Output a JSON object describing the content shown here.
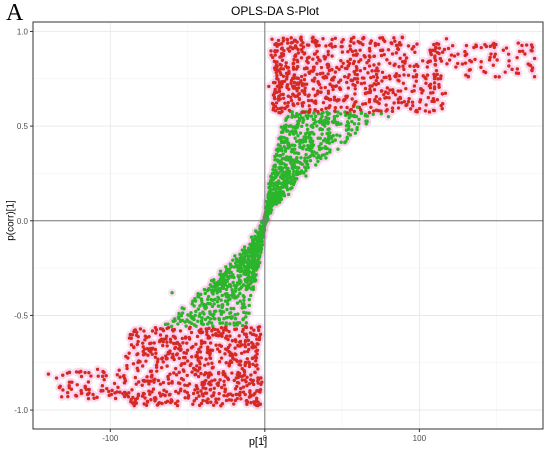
{
  "panel_label": "A",
  "chart_data": {
    "type": "scatter",
    "title": "OPLS-DA S-Plot",
    "xlabel": "p[1]",
    "ylabel": "p(corr)[1]",
    "xlim": [
      -150,
      180
    ],
    "ylim": [
      -1.1,
      1.05
    ],
    "x_ticks": [
      -100,
      0,
      100
    ],
    "y_ticks": [
      -1.0,
      -0.5,
      0.0,
      0.5,
      1.0
    ],
    "x_tick_labels": [
      "-100",
      "0",
      "100"
    ],
    "y_tick_labels": [
      "-1.0",
      "-0.5",
      "0.0",
      "0.5",
      "1.0"
    ],
    "grid": true,
    "legend": "none",
    "reference_lines": {
      "x": 0,
      "y": 0
    },
    "colors": {
      "significant": "#d42a22",
      "nonsignificant": "#2bb52b",
      "halo": "#f7c6ea",
      "axis_line": "#333333",
      "grid": "#e6e6e6"
    },
    "series": [
      {
        "group": "significant",
        "color": "#d42a22",
        "points": [
          [
            5,
            0.62
          ],
          [
            12,
            0.95
          ],
          [
            20,
            0.7
          ],
          [
            35,
            0.85
          ],
          [
            50,
            0.92
          ],
          [
            60,
            0.75
          ],
          [
            75,
            0.9
          ],
          [
            90,
            0.8
          ],
          [
            110,
            0.86
          ],
          [
            125,
            0.88
          ],
          [
            140,
            0.84
          ],
          [
            160,
            0.8
          ],
          [
            172,
            0.82
          ],
          [
            -8,
            -0.6
          ],
          [
            -25,
            -0.75
          ],
          [
            -40,
            -0.95
          ],
          [
            -60,
            -0.85
          ],
          [
            -75,
            -0.9
          ],
          [
            -95,
            -0.88
          ],
          [
            -120,
            -0.8
          ],
          [
            -140,
            -0.81
          ],
          [
            -15,
            -0.7
          ],
          [
            -5,
            -0.65
          ]
        ]
      },
      {
        "group": "nonsignificant",
        "color": "#2bb52b",
        "points": [
          [
            2,
            0.1
          ],
          [
            5,
            0.25
          ],
          [
            15,
            0.4
          ],
          [
            30,
            0.5
          ],
          [
            45,
            0.55
          ],
          [
            60,
            0.6
          ],
          [
            80,
            0.55
          ],
          [
            -2,
            -0.1
          ],
          [
            -5,
            -0.25
          ],
          [
            -15,
            -0.35
          ],
          [
            -30,
            -0.45
          ],
          [
            -45,
            -0.5
          ],
          [
            -60,
            -0.38
          ],
          [
            -20,
            -0.3
          ],
          [
            10,
            0.3
          ]
        ]
      }
    ]
  }
}
